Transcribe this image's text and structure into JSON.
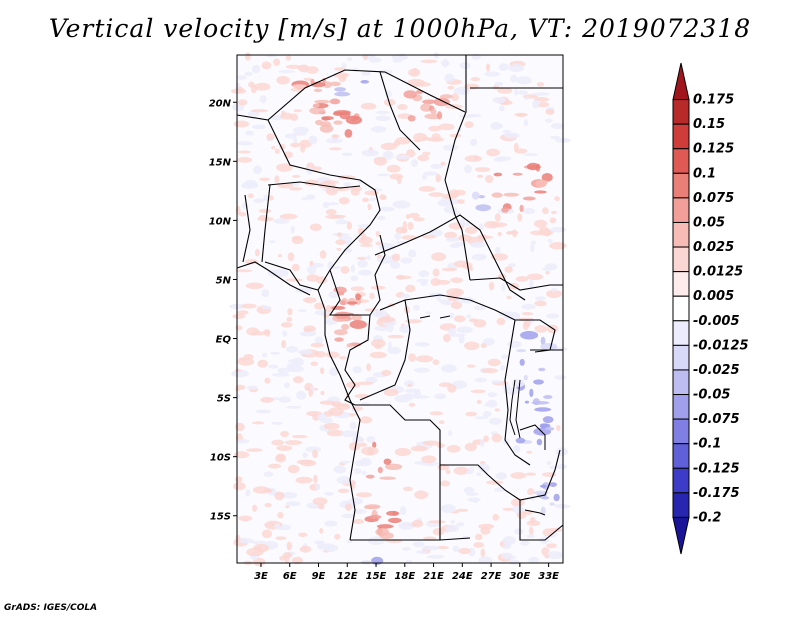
{
  "title": "Vertical velocity [m/s] at 1000hPa, VT: 2019072318",
  "credit": "GrADS: IGES/COLA",
  "lat_labels": [
    "20N",
    "15N",
    "10N",
    "5N",
    "EQ",
    "5S",
    "10S",
    "15S"
  ],
  "lon_labels": [
    "3E",
    "6E",
    "9E",
    "12E",
    "15E",
    "18E",
    "21E",
    "24E",
    "27E",
    "30E",
    "33E"
  ],
  "colorbar": {
    "labels": [
      "0.175",
      "0.15",
      "0.125",
      "0.1",
      "0.075",
      "0.05",
      "0.025",
      "0.0125",
      "0.005",
      "-0.005",
      "-0.0125",
      "-0.025",
      "-0.05",
      "-0.075",
      "-0.1",
      "-0.125",
      "-0.175",
      "-0.2"
    ],
    "colors": [
      "#a0161c",
      "#b82a2a",
      "#cf3d3b",
      "#e05a55",
      "#ea7f78",
      "#f29f99",
      "#f7bcb6",
      "#fbd7d3",
      "#fdeceb",
      "#ffffff",
      "#ececfc",
      "#d8d8f8",
      "#bdbdf2",
      "#9f9fec",
      "#8080e4",
      "#6060d8",
      "#3c3cc8",
      "#2626b0",
      "#1a1498"
    ]
  },
  "map": {
    "lat_range": [
      -19,
      24
    ],
    "lon_range": [
      0.5,
      34.5
    ],
    "field_colors": {
      "positive": "#e8736d",
      "negative": "#7272e0"
    }
  }
}
